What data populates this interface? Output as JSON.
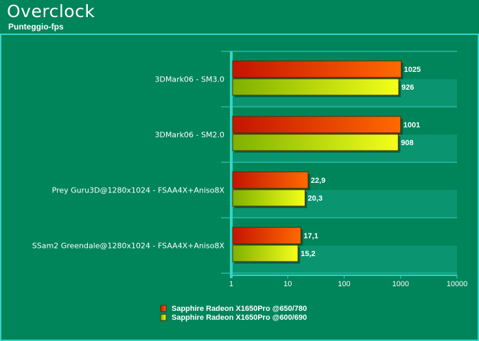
{
  "header": {
    "title": "Overclock",
    "subtitle": "Punteggio-fps"
  },
  "colors": {
    "background": "#00845a",
    "band": "#0a9470",
    "frame": "#33d6c6",
    "series1_light": "#ff6a00",
    "series1_dark": "#c41400",
    "series2_light": "#f4ff1a",
    "series2_dark": "#7fb000"
  },
  "chart_data": {
    "type": "bar",
    "orientation": "horizontal",
    "x_scale": "log",
    "xlim": [
      1,
      10000
    ],
    "x_ticks": [
      "1",
      "10",
      "100",
      "1000",
      "10000"
    ],
    "categories": [
      "3DMark06 - SM3.0",
      "3DMark06 - SM2.0",
      "Prey Guru3D@1280x1024 - FSAA4X+Aniso8X",
      "SSam2 Greendale@1280x1024 - FSAA4X+Aniso8X"
    ],
    "series": [
      {
        "name": "Sapphire Radeon X1650Pro @650/780",
        "values": [
          1025,
          1001,
          22.9,
          17.1
        ],
        "labels": [
          "1025",
          "1001",
          "22,9",
          "17,1"
        ]
      },
      {
        "name": "Sapphire Radeon X1650Pro @600/690",
        "values": [
          926,
          908,
          20.3,
          15.2
        ],
        "labels": [
          "926",
          "908",
          "20,3",
          "15,2"
        ]
      }
    ],
    "legend_position": "bottom-center"
  }
}
